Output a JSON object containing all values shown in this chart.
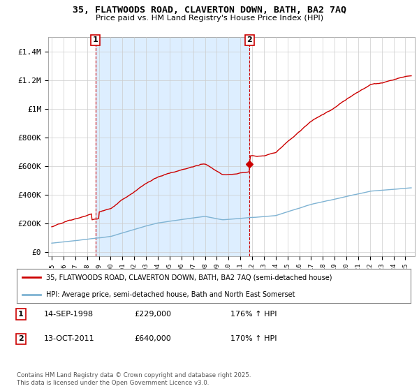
{
  "title": "35, FLATWOODS ROAD, CLAVERTON DOWN, BATH, BA2 7AQ",
  "subtitle": "Price paid vs. HM Land Registry's House Price Index (HPI)",
  "ylabel_ticks": [
    "£0",
    "£200K",
    "£400K",
    "£600K",
    "£800K",
    "£1M",
    "£1.2M",
    "£1.4M"
  ],
  "ytick_values": [
    0,
    200000,
    400000,
    600000,
    800000,
    1000000,
    1200000,
    1400000
  ],
  "ylim": [
    0,
    1500000
  ],
  "xlim_start": 1995,
  "xlim_end": 2025.5,
  "purchase1_date": 1998.71,
  "purchase1_price": 229000,
  "purchase1_label": "1",
  "purchase2_date": 2011.79,
  "purchase2_price": 640000,
  "purchase2_label": "2",
  "line1_color": "#cc0000",
  "line2_color": "#7fb3d3",
  "shade_color": "#ddeeff",
  "legend1": "35, FLATWOODS ROAD, CLAVERTON DOWN, BATH, BA2 7AQ (semi-detached house)",
  "legend2": "HPI: Average price, semi-detached house, Bath and North East Somerset",
  "note1_label": "1",
  "note1_date": "14-SEP-1998",
  "note1_price": "£229,000",
  "note1_hpi": "176% ↑ HPI",
  "note2_label": "2",
  "note2_date": "13-OCT-2011",
  "note2_price": "£640,000",
  "note2_hpi": "170% ↑ HPI",
  "footer": "Contains HM Land Registry data © Crown copyright and database right 2025.\nThis data is licensed under the Open Government Licence v3.0.",
  "bg_color": "#ffffff",
  "plot_bg_color": "#ffffff",
  "grid_color": "#cccccc"
}
